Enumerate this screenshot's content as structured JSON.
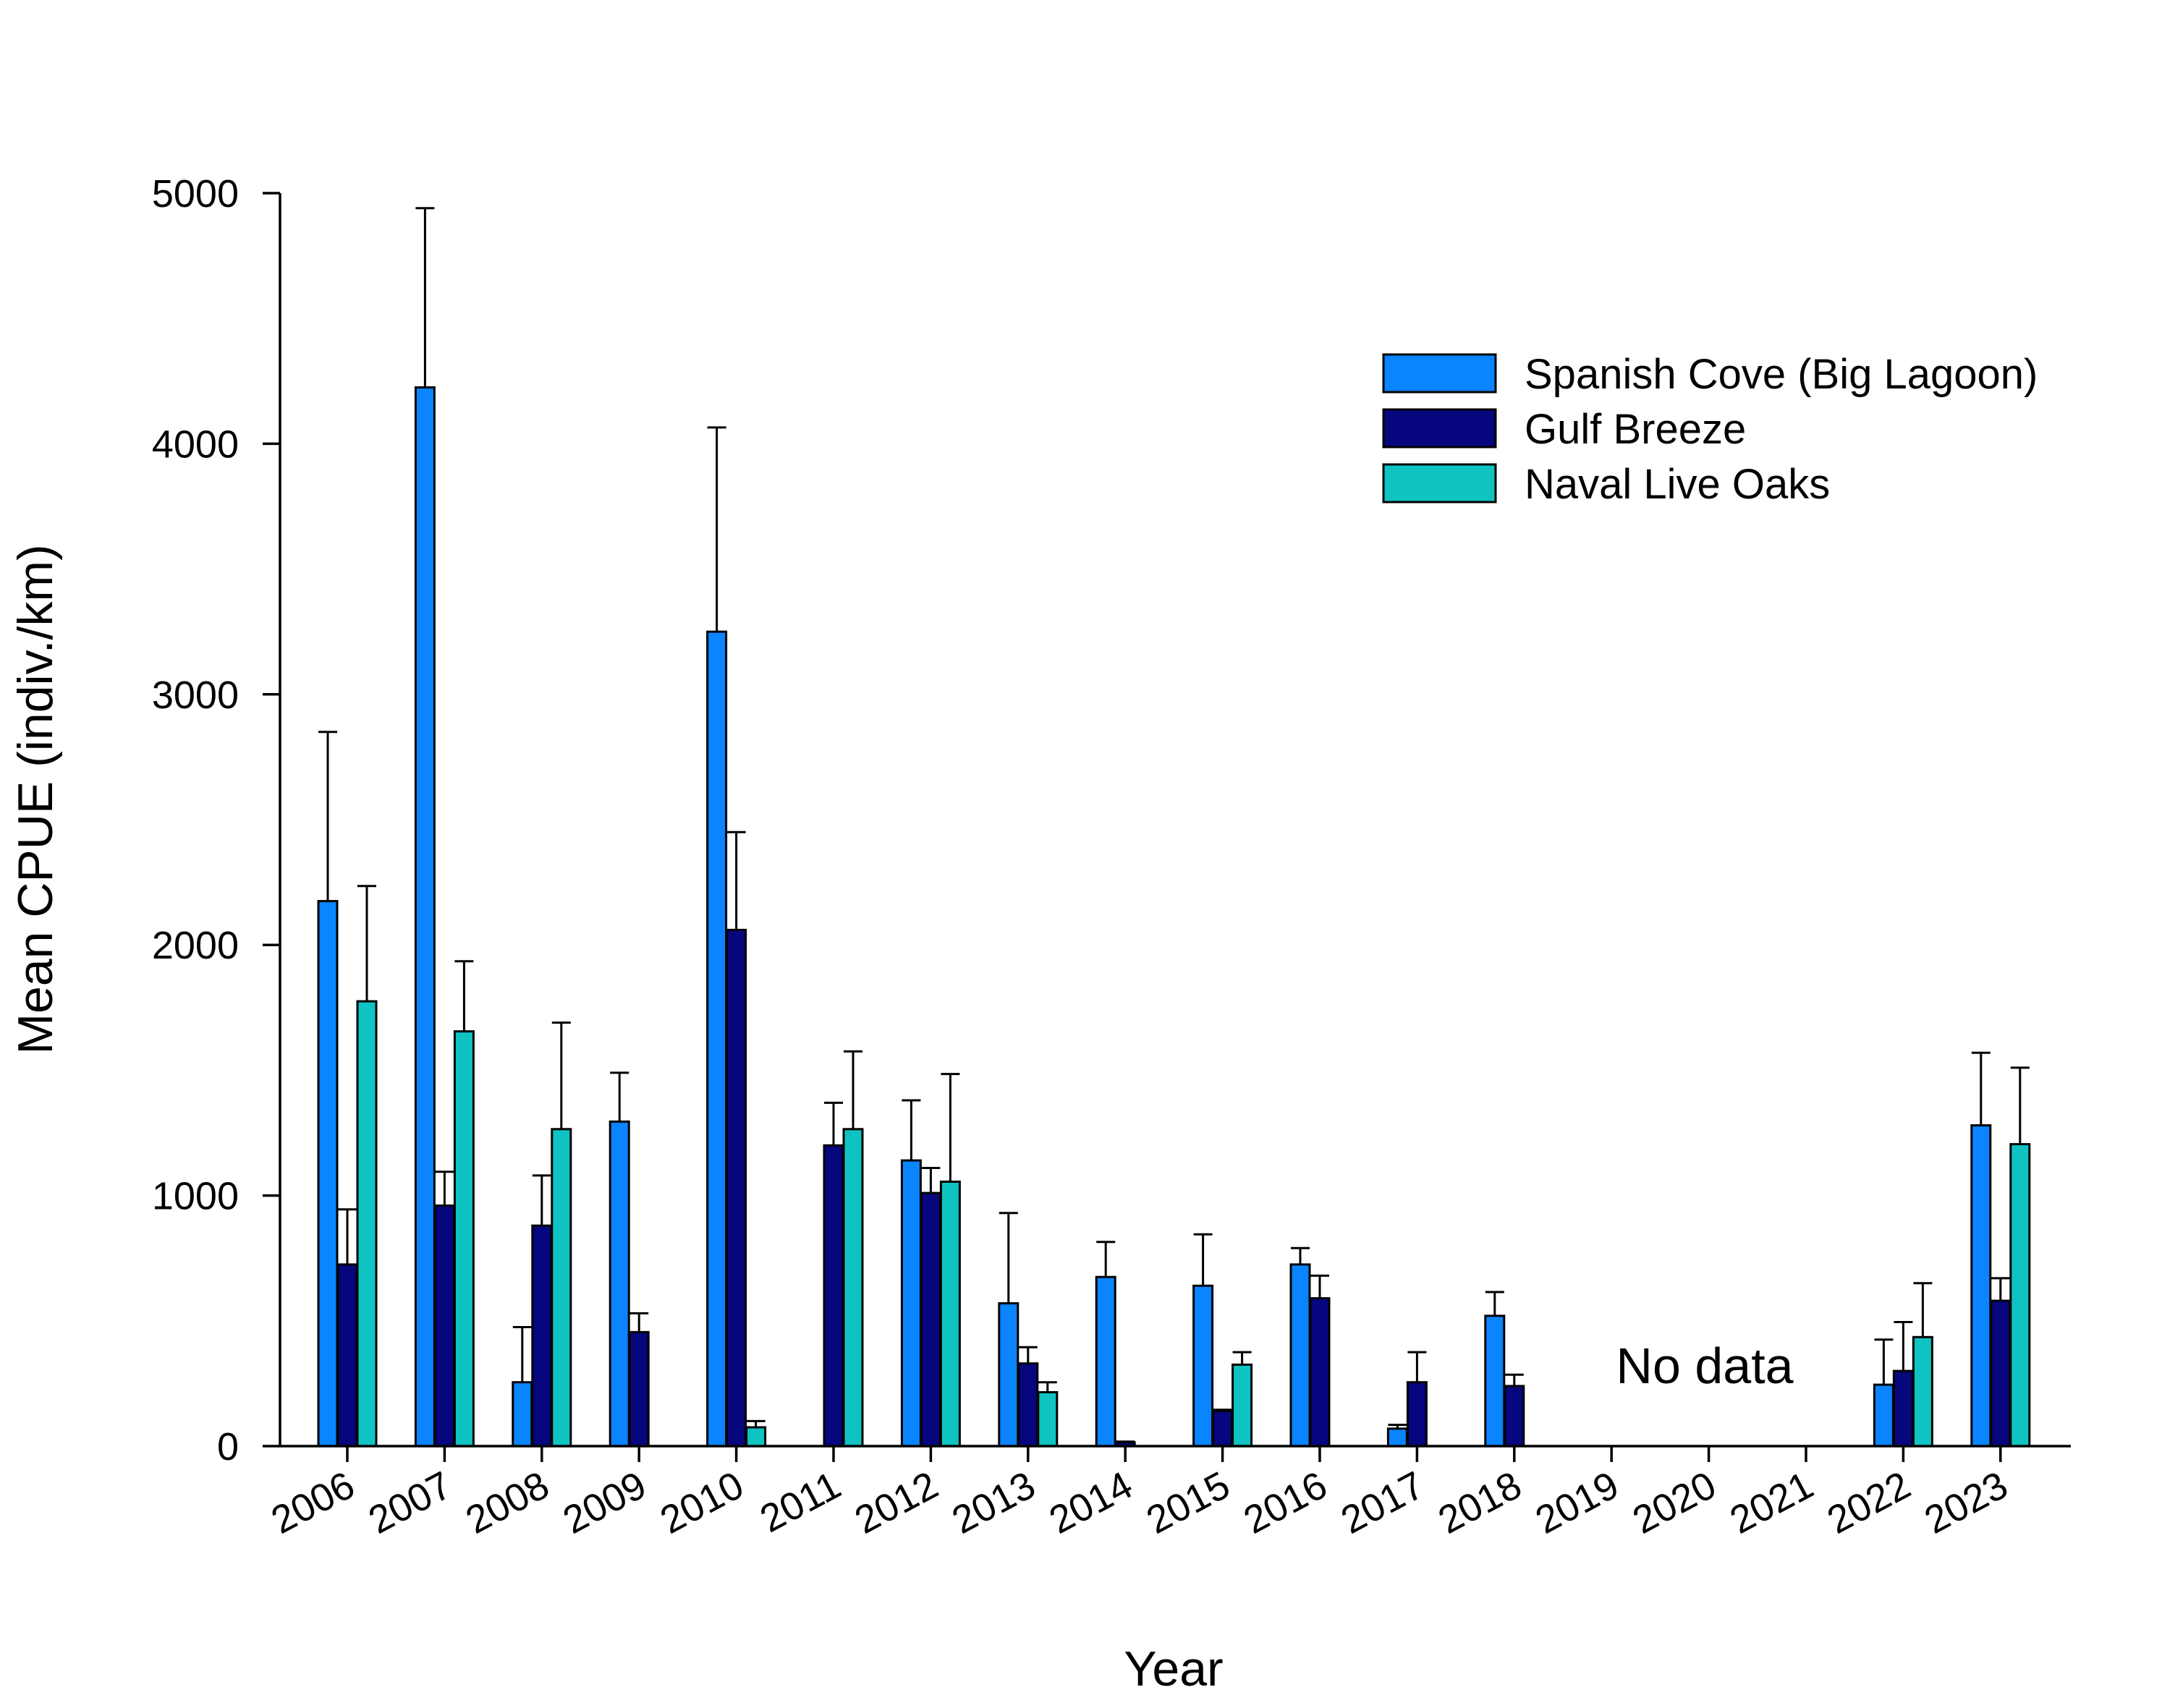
{
  "chart_data": {
    "type": "bar",
    "ylabel": "Mean CPUE (indiv./km)",
    "xlabel": "Year",
    "ylim": [
      0,
      5000
    ],
    "yticks": [
      0,
      1000,
      2000,
      3000,
      4000,
      5000
    ],
    "grid": false,
    "legend_position": "top-right",
    "categories": [
      "2006",
      "2007",
      "2008",
      "2009",
      "2010",
      "2011",
      "2012",
      "2013",
      "2014",
      "2015",
      "2016",
      "2017",
      "2018",
      "2019",
      "2020",
      "2021",
      "2022",
      "2023"
    ],
    "series": [
      {
        "name": "Spanish Cove (Big Lagoon)",
        "color": "#0a84ff",
        "values": [
          2175,
          4225,
          255,
          1295,
          3250,
          null,
          1140,
          570,
          675,
          640,
          725,
          70,
          520,
          null,
          null,
          null,
          245,
          1280
        ],
        "error_upper": [
          2850,
          4940,
          475,
          1490,
          4065,
          null,
          1380,
          930,
          815,
          845,
          790,
          85,
          615,
          null,
          null,
          null,
          425,
          1570
        ]
      },
      {
        "name": "Gulf Breeze",
        "color": "#06067e",
        "values": [
          725,
          960,
          880,
          455,
          2060,
          1200,
          1010,
          330,
          15,
          140,
          590,
          255,
          240,
          null,
          null,
          null,
          300,
          580
        ],
        "error_upper": [
          945,
          1095,
          1080,
          530,
          2450,
          1370,
          1110,
          395,
          18,
          145,
          680,
          375,
          285,
          null,
          null,
          null,
          495,
          670
        ]
      },
      {
        "name": "Naval Live Oaks",
        "color": "#10c3c3",
        "values": [
          1775,
          1655,
          1265,
          null,
          75,
          1265,
          1055,
          215,
          null,
          325,
          null,
          null,
          null,
          null,
          null,
          null,
          435,
          1205
        ],
        "error_upper": [
          2235,
          1935,
          1690,
          null,
          100,
          1575,
          1485,
          255,
          null,
          375,
          null,
          null,
          null,
          null,
          null,
          null,
          650,
          1510
        ]
      }
    ],
    "annotations": [
      {
        "text": "No data",
        "near_categories": [
          "2019",
          "2021"
        ]
      }
    ]
  }
}
